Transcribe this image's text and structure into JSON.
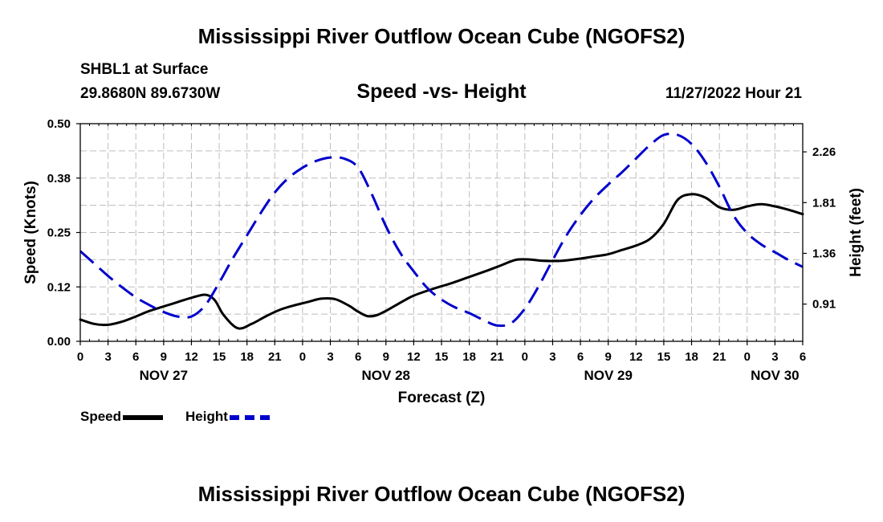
{
  "header": {
    "title": "Mississippi River Outflow Ocean Cube (NGOFS2)",
    "station": "SHBL1 at Surface",
    "coords": "29.8680N  89.6730W",
    "subtitle": "Speed -vs- Height",
    "datetime": "11/27/2022 Hour 21"
  },
  "footer": {
    "title": "Mississippi River Outflow Ocean Cube (NGOFS2)"
  },
  "chart_data": {
    "type": "line",
    "title": "Speed -vs- Height",
    "xlabel": "Forecast (Z)",
    "ylabel": "Speed (Knots)",
    "y2label": "Height (feet)",
    "x_unit": "hours from Nov 27 00Z",
    "xlim": [
      0,
      78
    ],
    "ylim": [
      0,
      0.5
    ],
    "y2lim": [
      0.58,
      2.51
    ],
    "x_tick_values": [
      0,
      3,
      6,
      9,
      12,
      15,
      18,
      21,
      24,
      27,
      30,
      33,
      36,
      39,
      42,
      45,
      48,
      51,
      54,
      57,
      60,
      63,
      66,
      69,
      72,
      75,
      78
    ],
    "x_tick_labels": [
      "0",
      "3",
      "6",
      "9",
      "12",
      "15",
      "18",
      "21",
      "0",
      "3",
      "6",
      "9",
      "12",
      "15",
      "18",
      "21",
      "0",
      "3",
      "6",
      "9",
      "12",
      "15",
      "18",
      "21",
      "0",
      "3",
      "6"
    ],
    "date_labels": [
      {
        "x": 9,
        "label": "NOV 27"
      },
      {
        "x": 33,
        "label": "NOV 28"
      },
      {
        "x": 57,
        "label": "NOV 29"
      },
      {
        "x": 75,
        "label": "NOV 30"
      }
    ],
    "y_tick_values": [
      0,
      0.125,
      0.25,
      0.375,
      0.5
    ],
    "y_tick_labels": [
      "0.00",
      "0.12",
      "0.25",
      "0.38",
      "0.50"
    ],
    "y2_tick_values": [
      0.91,
      1.36,
      1.81,
      2.26
    ],
    "y2_tick_labels": [
      "0.91",
      "1.36",
      "1.81",
      "2.26"
    ],
    "grid": true,
    "series": [
      {
        "name": "Speed",
        "axis": "left",
        "color": "#000000",
        "style": "solid",
        "x": [
          0,
          1.5,
          3,
          4.5,
          6,
          7.5,
          9,
          10.5,
          12,
          13.5,
          14.5,
          15.5,
          17,
          18.5,
          20,
          21.5,
          23,
          24.5,
          26,
          27.5,
          29,
          30,
          31,
          32,
          33,
          34,
          35,
          36,
          38,
          40,
          42,
          44,
          45.5,
          47,
          48.5,
          50,
          52,
          54,
          55.5,
          57,
          58.5,
          60,
          61.5,
          63,
          64.5,
          66,
          67.5,
          69,
          70.5,
          72,
          73.5,
          75,
          76.5,
          78
        ],
        "values": [
          0.05,
          0.04,
          0.038,
          0.045,
          0.057,
          0.07,
          0.08,
          0.09,
          0.1,
          0.107,
          0.095,
          0.06,
          0.03,
          0.04,
          0.057,
          0.072,
          0.082,
          0.09,
          0.098,
          0.097,
          0.082,
          0.068,
          0.058,
          0.06,
          0.07,
          0.082,
          0.094,
          0.105,
          0.12,
          0.133,
          0.148,
          0.163,
          0.175,
          0.187,
          0.188,
          0.185,
          0.185,
          0.19,
          0.195,
          0.2,
          0.21,
          0.22,
          0.235,
          0.27,
          0.325,
          0.338,
          0.33,
          0.308,
          0.302,
          0.31,
          0.315,
          0.31,
          0.302,
          0.292
        ]
      },
      {
        "name": "Height",
        "axis": "right",
        "color": "#0000cc",
        "style": "dashed",
        "x": [
          0,
          1.5,
          3,
          4.5,
          6,
          7.5,
          9,
          10.5,
          12,
          13.5,
          15,
          16.5,
          18,
          19.5,
          21,
          22.5,
          24,
          25.5,
          27,
          28.5,
          30,
          31.5,
          33,
          34.5,
          36,
          37.5,
          39,
          40.5,
          42,
          43.5,
          45,
          46.5,
          48,
          49.5,
          51,
          52.5,
          54,
          55.5,
          57,
          58.5,
          60,
          61.5,
          63,
          64.5,
          66,
          67.5,
          69,
          70.5,
          72,
          73.5,
          75,
          76.5,
          78
        ],
        "values": [
          1.38,
          1.27,
          1.16,
          1.06,
          0.97,
          0.9,
          0.84,
          0.8,
          0.8,
          0.9,
          1.1,
          1.32,
          1.52,
          1.72,
          1.9,
          2.03,
          2.12,
          2.18,
          2.21,
          2.2,
          2.12,
          1.88,
          1.6,
          1.37,
          1.2,
          1.05,
          0.95,
          0.88,
          0.83,
          0.77,
          0.72,
          0.74,
          0.87,
          1.07,
          1.3,
          1.52,
          1.7,
          1.85,
          1.97,
          2.08,
          2.2,
          2.32,
          2.41,
          2.41,
          2.33,
          2.17,
          1.95,
          1.7,
          1.54,
          1.44,
          1.37,
          1.3,
          1.24
        ]
      }
    ]
  }
}
